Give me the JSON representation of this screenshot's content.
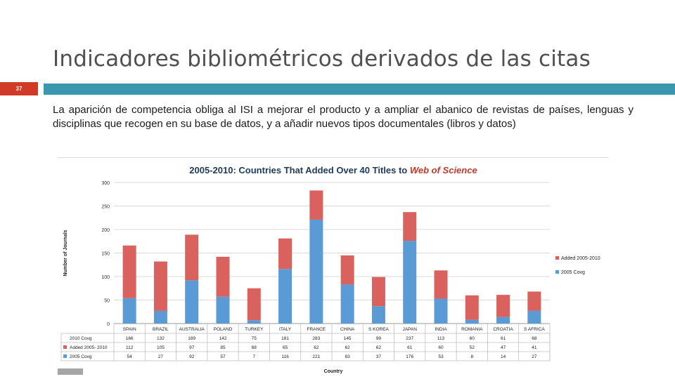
{
  "slide": {
    "title": "Indicadores bibliométricos derivados de las citas",
    "number": "37",
    "body": "La aparición de competencia obliga al ISI a mejorar el producto y a ampliar el abanico de revistas de países, lenguas y disciplinas que recogen en su base de datos, y a añadir nuevos tipos documentales (libros y datos)",
    "colors": {
      "accent_bar": "#3a98ae",
      "number_badge": "#d03a27"
    }
  },
  "chart_data": {
    "type": "bar",
    "stacked": true,
    "title_prefix": "2005-2010: Countries That Added Over 40 Titles to ",
    "title_emphasis": "Web of Science",
    "xlabel": "Country",
    "ylabel": "Number of Journals",
    "ylim": [
      0,
      300
    ],
    "yticks": [
      0,
      50,
      100,
      150,
      200,
      250,
      300
    ],
    "grid": true,
    "legend_position": "right",
    "categories": [
      "SPAIN",
      "BRAZIL",
      "AUSTRALIA",
      "POLAND",
      "TURKEY",
      "ITALY",
      "FRANCE",
      "CHINA",
      "S KOREA",
      "JAPAN",
      "INDIA",
      "ROMANIA",
      "CROATIA",
      "S AFRICA"
    ],
    "series": [
      {
        "name": "2005 Covg",
        "color": "#5b9bd5",
        "values": [
          54,
          27,
          92,
          57,
          7,
          116,
          221,
          83,
          37,
          176,
          53,
          8,
          14,
          27
        ]
      },
      {
        "name": "Added 2005-2010",
        "color": "#d9615e",
        "values": [
          112,
          105,
          97,
          85,
          68,
          65,
          62,
          62,
          62,
          61,
          60,
          52,
          47,
          41
        ]
      }
    ],
    "legend_labels": [
      "Added 2005-2010",
      "2005 Covg"
    ],
    "table": {
      "row_labels": [
        "2010 Covg",
        "Added 2005- 2010",
        "2005 Covg"
      ],
      "totals": [
        166,
        132,
        189,
        142,
        75,
        181,
        283,
        145,
        99,
        237,
        113,
        60,
        61,
        68
      ]
    }
  }
}
